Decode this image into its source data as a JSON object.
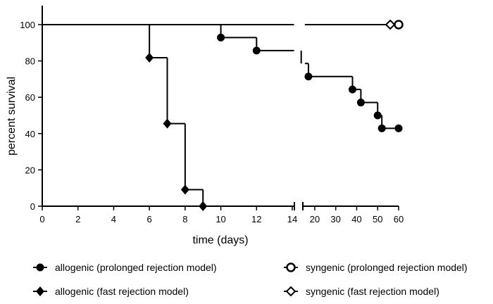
{
  "chart_data": {
    "type": "line",
    "subtype": "kaplan-meier step survival curve",
    "xlabel": "time (days)",
    "ylabel": "percent survival",
    "x_axis_break": true,
    "x_segments": [
      {
        "range": [
          0,
          14
        ],
        "ticks": [
          "0",
          "2",
          "4",
          "6",
          "8",
          "10",
          "12",
          "14"
        ]
      },
      {
        "range": [
          15,
          60
        ],
        "ticks": [
          "20",
          "30",
          "40",
          "50",
          "60"
        ]
      }
    ],
    "ylim": [
      0,
      110
    ],
    "y_ticks": [
      "0",
      "20",
      "40",
      "60",
      "80",
      "100"
    ],
    "grid": false,
    "legend_position": "bottom",
    "series": [
      {
        "name": "allogenic (prolonged rejection model)",
        "marker": "filled-circle",
        "steps": [
          [
            0,
            100
          ],
          [
            10,
            92.9
          ],
          [
            12,
            85.7
          ],
          [
            14.5,
            78.6
          ],
          [
            17,
            71.4
          ],
          [
            38,
            64.3
          ],
          [
            42,
            57.1
          ],
          [
            50,
            50
          ],
          [
            52,
            42.9
          ],
          [
            60,
            42.9
          ]
        ],
        "markers": [
          [
            10,
            92.9
          ],
          [
            12,
            85.7
          ],
          [
            17,
            71.4
          ],
          [
            38,
            64.3
          ],
          [
            42,
            57.1
          ],
          [
            50,
            50
          ],
          [
            52,
            42.9
          ],
          [
            60,
            42.9
          ]
        ]
      },
      {
        "name": "allogenic (fast rejection model)",
        "marker": "filled-diamond",
        "steps": [
          [
            0,
            100
          ],
          [
            6,
            81.8
          ],
          [
            7,
            45.5
          ],
          [
            8,
            9.1
          ],
          [
            9,
            0
          ]
        ],
        "markers": [
          [
            6,
            81.8
          ],
          [
            7,
            45.5
          ],
          [
            8,
            9.1
          ],
          [
            9,
            0
          ]
        ]
      },
      {
        "name": "syngenic (prolonged rejection model)",
        "marker": "open-circle",
        "steps": [
          [
            0,
            100
          ],
          [
            60,
            100
          ]
        ],
        "markers": [
          [
            60,
            100
          ]
        ]
      },
      {
        "name": "syngenic (fast rejection model)",
        "marker": "open-diamond",
        "steps": [
          [
            0,
            100
          ],
          [
            56,
            100
          ]
        ],
        "markers": [
          [
            56,
            100
          ]
        ]
      }
    ]
  }
}
